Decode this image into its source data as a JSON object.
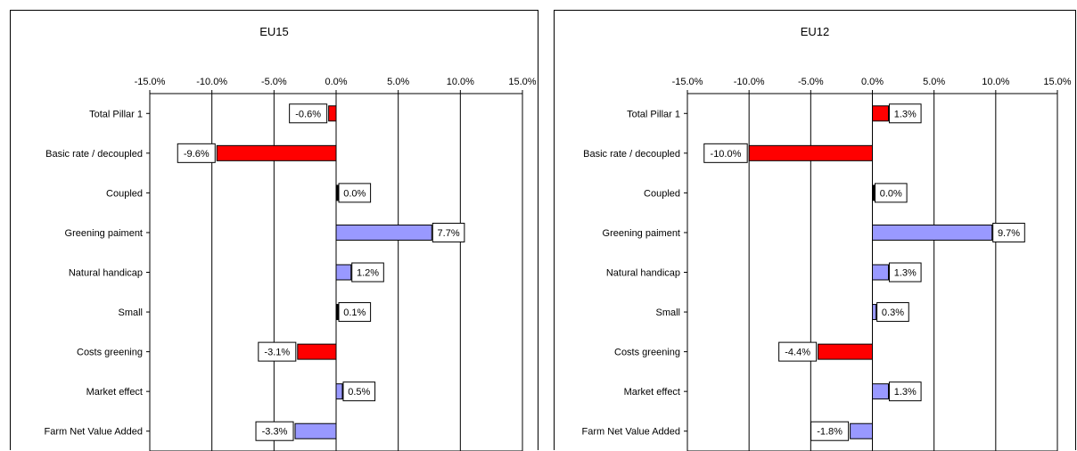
{
  "chart_data": [
    {
      "type": "bar",
      "orientation": "horizontal",
      "title": "EU15",
      "categories": [
        "Total Pillar 1",
        "Basic rate / decoupled",
        "Coupled",
        "Greening paiment",
        "Natural handicap",
        "Small",
        "Costs greening",
        "Market effect",
        "Farm Net Value Added"
      ],
      "values": [
        -0.6,
        -9.6,
        0.0,
        7.7,
        1.2,
        0.1,
        -3.1,
        0.5,
        -3.3
      ],
      "data_labels": [
        "-0.6%",
        "-9.6%",
        "0.0%",
        "7.7%",
        "1.2%",
        "0.1%",
        "-3.1%",
        "0.5%",
        "-3.3%"
      ],
      "bar_colors": [
        "#ff0000",
        "#ff0000",
        "#000000",
        "#9999ff",
        "#9999ff",
        "#000000",
        "#ff0000",
        "#9999ff",
        "#9999ff"
      ],
      "xlim": [
        -15,
        15
      ],
      "x_ticks": [
        "-15.0%",
        "-10.0%",
        "-5.0%",
        "0.0%",
        "5.0%",
        "10.0%",
        "15.0%"
      ],
      "grid": true
    },
    {
      "type": "bar",
      "orientation": "horizontal",
      "title": "EU12",
      "categories": [
        "Total Pillar 1",
        "Basic rate / decoupled",
        "Coupled",
        "Greening paiment",
        "Natural handicap",
        "Small",
        "Costs greening",
        "Market effect",
        "Farm Net Value Added"
      ],
      "values": [
        1.3,
        -10.0,
        0.0,
        9.7,
        1.3,
        0.3,
        -4.4,
        1.3,
        -1.8
      ],
      "data_labels": [
        "1.3%",
        "-10.0%",
        "0.0%",
        "9.7%",
        "1.3%",
        "0.3%",
        "-4.4%",
        "1.3%",
        "-1.8%"
      ],
      "bar_colors": [
        "#ff0000",
        "#ff0000",
        "#000000",
        "#9999ff",
        "#9999ff",
        "#9999ff",
        "#ff0000",
        "#9999ff",
        "#9999ff"
      ],
      "xlim": [
        -15,
        15
      ],
      "x_ticks": [
        "-15.0%",
        "-10.0%",
        "-5.0%",
        "0.0%",
        "5.0%",
        "10.0%",
        "15.0%"
      ],
      "grid": true
    }
  ]
}
